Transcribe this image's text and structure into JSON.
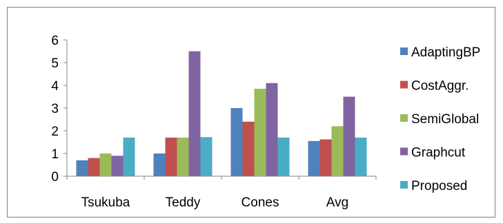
{
  "chart_data": {
    "type": "bar",
    "categories": [
      "Tsukuba",
      "Teddy",
      "Cones",
      "Avg"
    ],
    "series": [
      {
        "name": "AdaptingBP",
        "color": "#4F81BD",
        "values": [
          0.7,
          1.0,
          3.0,
          1.55
        ]
      },
      {
        "name": "CostAggr.",
        "color": "#C0504D",
        "values": [
          0.8,
          1.7,
          2.4,
          1.62
        ]
      },
      {
        "name": "SemiGlobal",
        "color": "#9BBB59",
        "values": [
          1.0,
          1.7,
          3.85,
          2.2
        ]
      },
      {
        "name": "Graphcut",
        "color": "#8064A2",
        "values": [
          0.9,
          5.5,
          4.1,
          3.5
        ]
      },
      {
        "name": "Proposed",
        "color": "#4BACC6",
        "values": [
          1.7,
          1.72,
          1.7,
          1.7
        ]
      }
    ],
    "ylim": [
      0,
      6
    ],
    "yticks": [
      "0",
      "1",
      "2",
      "3",
      "4",
      "5",
      "6"
    ],
    "grid": false,
    "legend_position": "right"
  }
}
